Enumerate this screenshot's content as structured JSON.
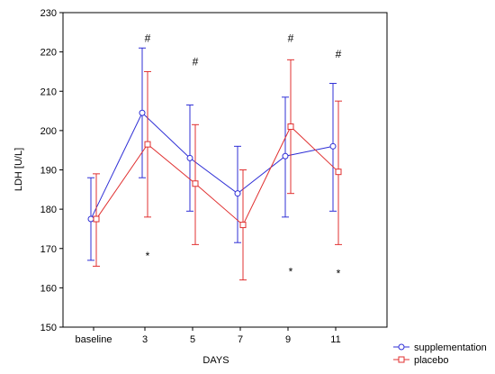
{
  "chart_data": {
    "type": "line",
    "xlabel": "DAYS",
    "ylabel": "LDH [U/L]",
    "ylim": [
      150,
      230
    ],
    "yticks": [
      150,
      160,
      170,
      180,
      190,
      200,
      210,
      220,
      230
    ],
    "categories": [
      "baseline",
      "3",
      "5",
      "7",
      "9",
      "11"
    ],
    "grid": false,
    "legend_position": "bottom-right",
    "series": [
      {
        "name": "supplementation",
        "color": "#2f2fd6",
        "marker": "circle",
        "values": [
          177.5,
          204.5,
          193.0,
          184.0,
          193.5,
          196.0
        ],
        "lower": [
          167.0,
          188.0,
          179.5,
          171.5,
          178.0,
          179.5
        ],
        "upper": [
          188.0,
          221.0,
          206.5,
          196.0,
          208.5,
          212.0
        ]
      },
      {
        "name": "placebo",
        "color": "#e03030",
        "marker": "square",
        "values": [
          177.5,
          196.5,
          186.5,
          176.0,
          201.0,
          189.5
        ],
        "lower": [
          165.5,
          178.0,
          171.0,
          162.0,
          184.0,
          171.0
        ],
        "upper": [
          189.0,
          215.0,
          201.5,
          190.0,
          218.0,
          207.5
        ]
      }
    ],
    "annotations": [
      {
        "text": "#",
        "category": "3",
        "y": 223.5
      },
      {
        "text": "#",
        "category": "5",
        "y": 217.5
      },
      {
        "text": "#",
        "category": "9",
        "y": 223.5
      },
      {
        "text": "#",
        "category": "11",
        "y": 219.5
      },
      {
        "text": "*",
        "category": "3",
        "y": 169.0
      },
      {
        "text": "*",
        "category": "9",
        "y": 165.0
      },
      {
        "text": "*",
        "category": "11",
        "y": 164.5
      }
    ]
  }
}
